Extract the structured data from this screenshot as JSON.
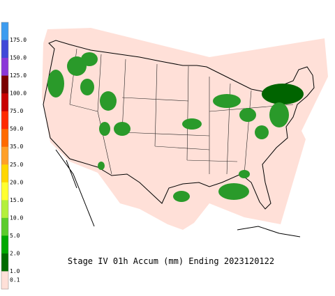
{
  "legend": {
    "labels": [
      "175.0",
      "150.0",
      "125.0",
      "100.0",
      "75.0",
      "50.0",
      "35.0",
      "25.0",
      "20.0",
      "15.0",
      "10.0",
      "5.0",
      "2.0",
      "1.0",
      "0.1"
    ],
    "colors": [
      "#3c9cf0",
      "#3f48d8",
      "#8a38d8",
      "#7a0000",
      "#c80000",
      "#ff2a00",
      "#ff6a00",
      "#ffa028",
      "#ffd700",
      "#ffff30",
      "#b4f03c",
      "#5ccc2c",
      "#00a800",
      "#006a00",
      "#ffe0d8"
    ]
  },
  "caption": "Stage IV 01h Accum (mm) Ending 2023120122"
}
